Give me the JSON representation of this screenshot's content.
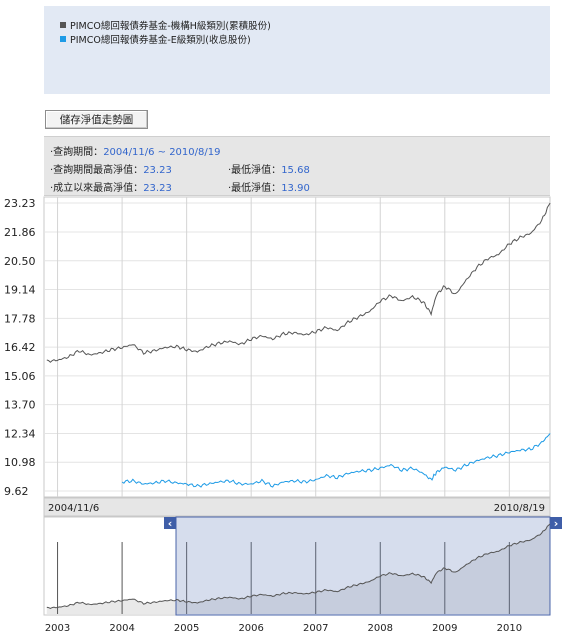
{
  "legend": {
    "items": [
      {
        "label": "PIMCO總回報債券基金-機構H級類別(累積股份)",
        "color": "#555555"
      },
      {
        "label": "PIMCO總回報債券基金-E級類別(收息股份)",
        "color": "#1e9be6"
      }
    ]
  },
  "toolbar": {
    "save_label": "儲存淨值走勢圖"
  },
  "info": {
    "period_label": "‧查詢期間：",
    "period_value": "2004/11/6 ~ 2010/8/19",
    "period_high_label": "‧查詢期間最高淨值：",
    "period_high_value": "23.23",
    "period_low_label": "‧最低淨值：",
    "period_low_value": "15.68",
    "alltime_high_label": "‧成立以來最高淨值：",
    "alltime_high_value": "23.23",
    "alltime_low_label": "‧最低淨值：",
    "alltime_low_value": "13.90"
  },
  "chart_data": {
    "type": "line",
    "y_ticks": [
      "23.23",
      "21.86",
      "20.50",
      "19.14",
      "17.78",
      "16.42",
      "15.06",
      "13.70",
      "12.34",
      "10.98",
      "9.62"
    ],
    "ylim": [
      9.62,
      23.23
    ],
    "grid": true,
    "date_range_labels": {
      "start": "2004/11/6",
      "end": "2010/8/19"
    },
    "series": [
      {
        "name": "PIMCO總回報債券基金-機構H級類別(累積股份)",
        "color": "#555555",
        "points": [
          [
            "2002-11-01",
            15.75
          ],
          [
            "2003-01-01",
            15.8
          ],
          [
            "2003-03-01",
            15.95
          ],
          [
            "2003-05-01",
            16.25
          ],
          [
            "2003-07-01",
            16.05
          ],
          [
            "2003-09-01",
            16.15
          ],
          [
            "2003-11-01",
            16.3
          ],
          [
            "2004-01-01",
            16.4
          ],
          [
            "2004-03-01",
            16.55
          ],
          [
            "2004-05-01",
            16.15
          ],
          [
            "2004-07-01",
            16.25
          ],
          [
            "2004-09-01",
            16.4
          ],
          [
            "2004-11-06",
            16.45
          ],
          [
            "2005-01-01",
            16.3
          ],
          [
            "2005-03-01",
            16.2
          ],
          [
            "2005-05-01",
            16.45
          ],
          [
            "2005-07-01",
            16.6
          ],
          [
            "2005-09-01",
            16.7
          ],
          [
            "2005-11-01",
            16.55
          ],
          [
            "2006-01-01",
            16.8
          ],
          [
            "2006-03-01",
            16.95
          ],
          [
            "2006-05-01",
            16.8
          ],
          [
            "2006-07-01",
            17.05
          ],
          [
            "2006-09-01",
            17.1
          ],
          [
            "2006-11-01",
            17.0
          ],
          [
            "2007-01-01",
            17.15
          ],
          [
            "2007-03-01",
            17.35
          ],
          [
            "2007-05-01",
            17.2
          ],
          [
            "2007-07-01",
            17.6
          ],
          [
            "2007-09-01",
            17.85
          ],
          [
            "2007-11-01",
            18.1
          ],
          [
            "2008-01-01",
            18.6
          ],
          [
            "2008-03-01",
            18.85
          ],
          [
            "2008-05-01",
            18.6
          ],
          [
            "2008-07-01",
            18.8
          ],
          [
            "2008-09-01",
            18.55
          ],
          [
            "2008-10-15",
            18.0
          ],
          [
            "2008-11-15",
            18.9
          ],
          [
            "2009-01-01",
            19.3
          ],
          [
            "2009-03-01",
            18.9
          ],
          [
            "2009-05-01",
            19.6
          ],
          [
            "2009-07-01",
            20.2
          ],
          [
            "2009-09-01",
            20.6
          ],
          [
            "2009-11-01",
            20.8
          ],
          [
            "2010-01-01",
            21.3
          ],
          [
            "2010-03-01",
            21.6
          ],
          [
            "2010-05-01",
            21.8
          ],
          [
            "2010-07-01",
            22.4
          ],
          [
            "2010-08-19",
            23.23
          ]
        ]
      },
      {
        "name": "PIMCO總回報債券基金-E級類別(收息股份)",
        "color": "#1e9be6",
        "points": [
          [
            "2004-01-01",
            10.05
          ],
          [
            "2004-03-01",
            10.1
          ],
          [
            "2004-05-01",
            9.95
          ],
          [
            "2004-07-01",
            10.0
          ],
          [
            "2004-09-01",
            10.1
          ],
          [
            "2004-11-06",
            10.0
          ],
          [
            "2005-01-01",
            9.95
          ],
          [
            "2005-03-01",
            9.85
          ],
          [
            "2005-05-01",
            9.95
          ],
          [
            "2005-07-01",
            10.05
          ],
          [
            "2005-09-01",
            10.1
          ],
          [
            "2005-11-01",
            9.95
          ],
          [
            "2006-01-01",
            9.95
          ],
          [
            "2006-03-01",
            10.1
          ],
          [
            "2006-05-01",
            9.85
          ],
          [
            "2006-07-01",
            10.05
          ],
          [
            "2006-09-01",
            10.1
          ],
          [
            "2006-11-01",
            10.05
          ],
          [
            "2007-01-01",
            10.15
          ],
          [
            "2007-03-01",
            10.35
          ],
          [
            "2007-05-01",
            10.25
          ],
          [
            "2007-07-01",
            10.45
          ],
          [
            "2007-09-01",
            10.55
          ],
          [
            "2007-11-01",
            10.6
          ],
          [
            "2008-01-01",
            10.7
          ],
          [
            "2008-03-01",
            10.85
          ],
          [
            "2008-05-01",
            10.6
          ],
          [
            "2008-07-01",
            10.7
          ],
          [
            "2008-09-01",
            10.45
          ],
          [
            "2008-10-15",
            10.15
          ],
          [
            "2008-11-15",
            10.5
          ],
          [
            "2009-01-01",
            10.75
          ],
          [
            "2009-03-01",
            10.6
          ],
          [
            "2009-05-01",
            10.85
          ],
          [
            "2009-07-01",
            11.05
          ],
          [
            "2009-09-01",
            11.2
          ],
          [
            "2009-11-01",
            11.3
          ],
          [
            "2010-01-01",
            11.45
          ],
          [
            "2010-03-01",
            11.55
          ],
          [
            "2010-05-01",
            11.6
          ],
          [
            "2010-07-01",
            11.9
          ],
          [
            "2010-08-19",
            12.34
          ]
        ]
      }
    ]
  },
  "navigator": {
    "year_labels": [
      "2003",
      "2004",
      "2005",
      "2006",
      "2007",
      "2008",
      "2009",
      "2010"
    ],
    "left_arrow": "‹",
    "right_arrow": "›"
  }
}
